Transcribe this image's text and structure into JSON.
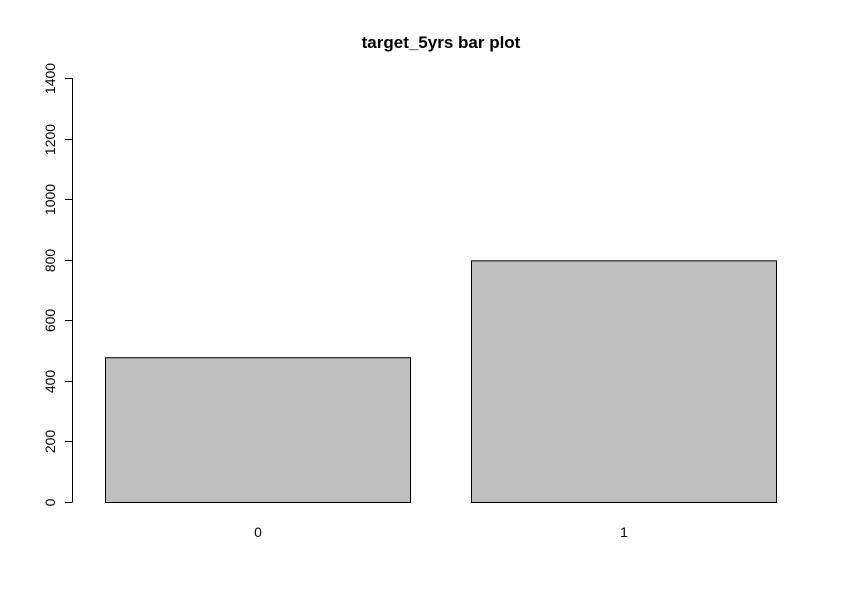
{
  "chart_data": {
    "type": "bar",
    "title": "target_5yrs bar plot",
    "xlabel": "",
    "ylabel": "",
    "categories": [
      "0",
      "1"
    ],
    "values": [
      478,
      798
    ],
    "ylim": [
      0,
      1400
    ],
    "yticks": [
      0,
      200,
      400,
      600,
      800,
      1000,
      1200,
      1400
    ],
    "ytick_labels": [
      "0",
      "200",
      "400",
      "600",
      "800",
      "1000",
      "1200",
      "1400"
    ],
    "grid": false,
    "legend": "none",
    "bar_fill": "#bebebe",
    "bar_stroke": "#000000"
  }
}
